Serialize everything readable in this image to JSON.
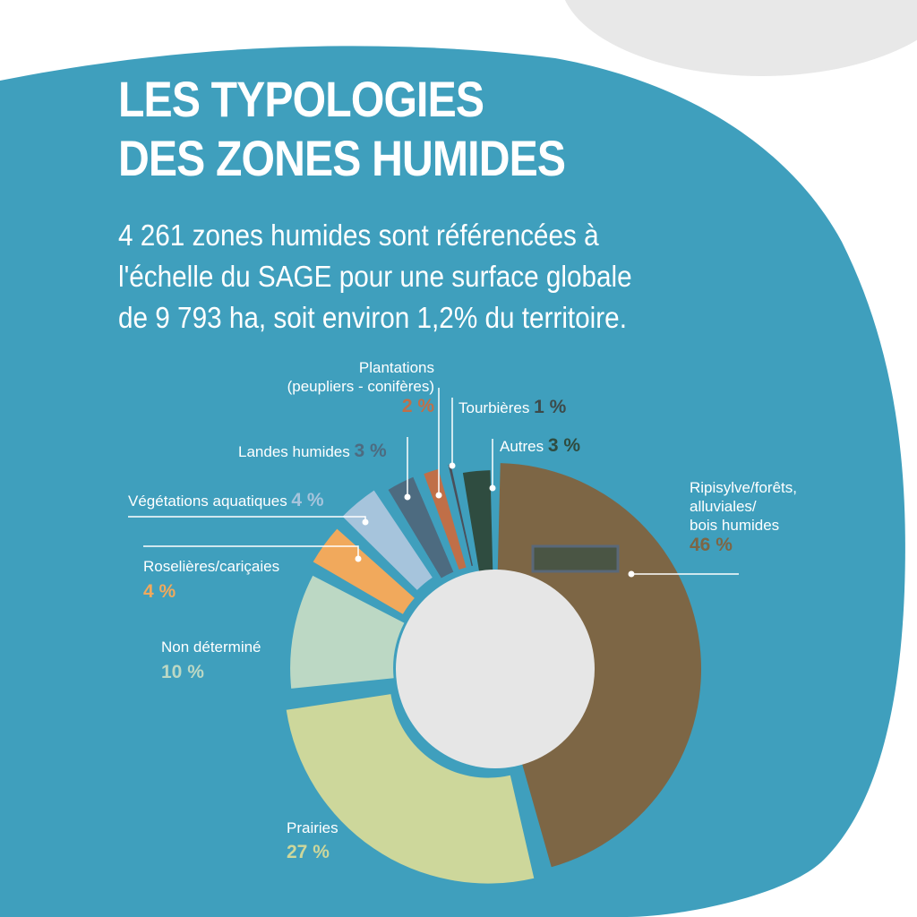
{
  "title": {
    "line1": "LES TYPOLOGIES",
    "line2": "DES ZONES HUMIDES"
  },
  "subtitle": {
    "line1": "4 261 zones humides sont référencées à",
    "line2": "l'échelle du SAGE pour une surface globale",
    "line3": "de 9 793 ha, soit environ 1,2% du territoire."
  },
  "colors": {
    "background": "#3f9fbd",
    "cloud": "#e8e8e8",
    "hole": "#e6e6e6",
    "leader": "#ffffff"
  },
  "chart_data": {
    "type": "pie",
    "style": "exploded donut",
    "slices": [
      {
        "name": "Ripisylve/forêts, alluviales/ bois humides",
        "label_lines": [
          "Ripisylve/forêts,",
          "alluviales/",
          "bois humides"
        ],
        "value": 46,
        "pct_label": "46 %",
        "color": "#7d6645",
        "pct_color": "#7d6645"
      },
      {
        "name": "Prairies",
        "label_lines": [
          "Prairies"
        ],
        "value": 27,
        "pct_label": "27 %",
        "color": "#cdd79b",
        "pct_color": "#cdd79b"
      },
      {
        "name": "Non déterminé",
        "label_lines": [
          "Non déterminé"
        ],
        "value": 10,
        "pct_label": "10 %",
        "color": "#bcd8c4",
        "pct_color": "#bcd8c4"
      },
      {
        "name": "Roselières/cariçaies",
        "label_lines": [
          "Roselières/cariçaies"
        ],
        "value": 4,
        "pct_label": "4 %",
        "color": "#f1a95c",
        "pct_color": "#f1a95c"
      },
      {
        "name": "Végétations aquatiques",
        "label_lines": [
          "Végétations aquatiques"
        ],
        "value": 4,
        "pct_label": "4 %",
        "color": "#a6c4dc",
        "pct_color": "#a6c4dc"
      },
      {
        "name": "Landes humides",
        "label_lines": [
          "Landes humides"
        ],
        "value": 3,
        "pct_label": "3 %",
        "color": "#4d6b80",
        "pct_color": "#4d6b80"
      },
      {
        "name": "Plantations (peupliers - conifères)",
        "label_lines": [
          "Plantations",
          "(peupliers - conifères)"
        ],
        "value": 2,
        "pct_label": "2 %",
        "color": "#c06f48",
        "pct_color": "#c06f48"
      },
      {
        "name": "Tourbières",
        "label_lines": [
          "Tourbières"
        ],
        "value": 1,
        "pct_label": "1 %",
        "color": "#4a4f5a",
        "pct_color": "#3d4a4a"
      },
      {
        "name": "Autres",
        "label_lines": [
          "Autres"
        ],
        "value": 3,
        "pct_label": "3 %",
        "color": "#2f4c40",
        "pct_color": "#2f4c40"
      }
    ]
  }
}
